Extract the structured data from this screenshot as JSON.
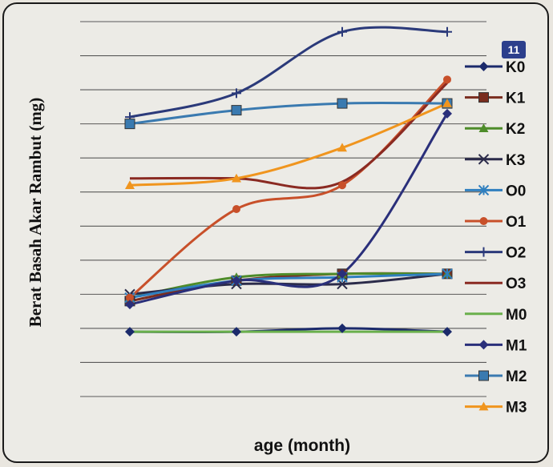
{
  "page_number": "11",
  "chart_data": {
    "type": "line",
    "title": "",
    "xlabel": "age (month)",
    "ylabel": "Berat Basah Akar Rambut (mg)",
    "x": [
      1,
      2,
      3,
      4
    ],
    "ylim": [
      0,
      11
    ],
    "grid": true,
    "legend_position": "right",
    "series": [
      {
        "name": "K0",
        "color": "#1b2a6b",
        "marker": "diamond",
        "values": [
          1.9,
          1.9,
          2.0,
          1.9
        ]
      },
      {
        "name": "K1",
        "color": "#7a2d1f",
        "marker": "square",
        "values": [
          2.8,
          3.4,
          3.6,
          3.6
        ]
      },
      {
        "name": "K2",
        "color": "#4e8c2a",
        "marker": "triangle",
        "values": [
          2.9,
          3.5,
          3.6,
          3.6
        ]
      },
      {
        "name": "K3",
        "color": "#2b2b4a",
        "marker": "x",
        "values": [
          3.0,
          3.3,
          3.3,
          3.6
        ]
      },
      {
        "name": "O0",
        "color": "#2f7fbf",
        "marker": "star",
        "values": [
          2.9,
          3.4,
          3.5,
          3.6
        ]
      },
      {
        "name": "O1",
        "color": "#c8502a",
        "marker": "circle",
        "values": [
          2.9,
          5.5,
          6.2,
          9.3
        ]
      },
      {
        "name": "O2",
        "color": "#2b3a7a",
        "marker": "plus",
        "values": [
          8.2,
          8.9,
          10.7,
          10.7
        ]
      },
      {
        "name": "O3",
        "color": "#8a2a22",
        "marker": "none",
        "values": [
          6.4,
          6.4,
          6.3,
          9.2
        ]
      },
      {
        "name": "M0",
        "color": "#6ab04c",
        "marker": "none",
        "values": [
          1.9,
          1.9,
          1.9,
          1.9
        ]
      },
      {
        "name": "M1",
        "color": "#2a2f7a",
        "marker": "diamond",
        "values": [
          2.7,
          3.4,
          3.6,
          8.3
        ]
      },
      {
        "name": "M2",
        "color": "#3a7ab0",
        "marker": "square",
        "values": [
          8.0,
          8.4,
          8.6,
          8.6
        ]
      },
      {
        "name": "M3",
        "color": "#f0951e",
        "marker": "triangle",
        "values": [
          6.2,
          6.4,
          7.3,
          8.6
        ]
      }
    ]
  }
}
